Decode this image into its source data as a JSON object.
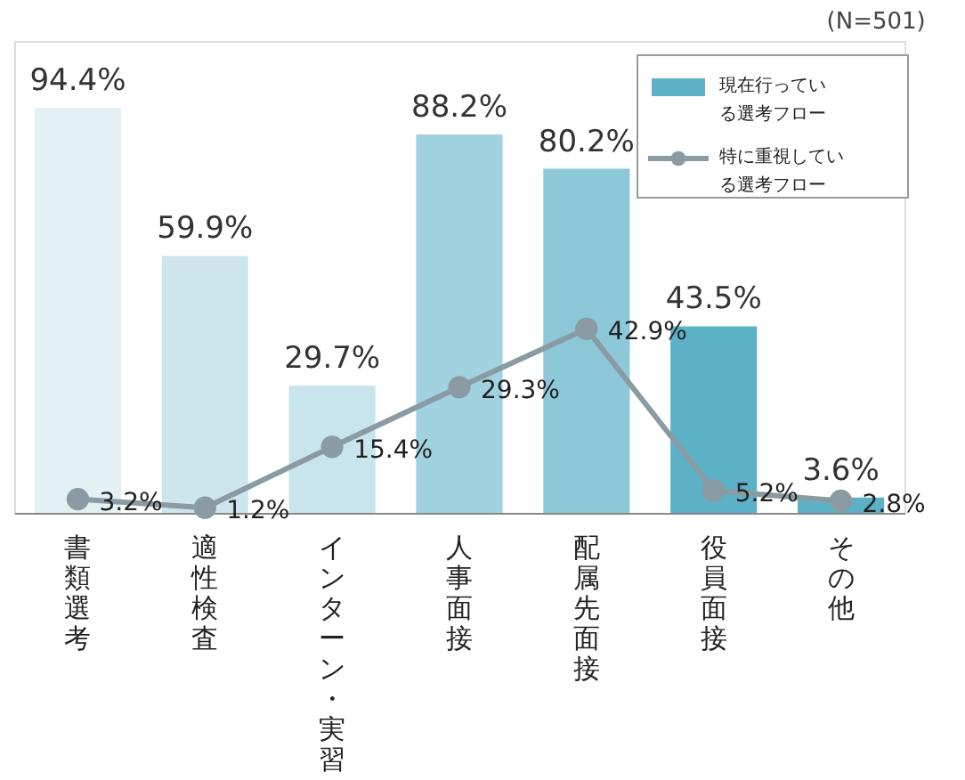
{
  "chart_data": {
    "type": "bar",
    "annotations": [
      "(N=501)"
    ],
    "categories": [
      "書類選考",
      "適性検査",
      "インターン・実習",
      "人事面接",
      "配属先面接",
      "役員面接",
      "その他"
    ],
    "ylim": [
      0,
      110
    ],
    "tick_labels": "x",
    "grid": false,
    "legend": "top right",
    "marker": "circle",
    "line_style": "solid",
    "series": [
      {
        "name": "現在行っている選考フロー",
        "color": "#5db1c7",
        "colors": [
          "#e3f1f5",
          "#cde6ee",
          "#c8e4ec",
          "#a0d2df",
          "#8cc8d8",
          "#5db1c7",
          "#5db1c7"
        ],
        "values": [
          94.4,
          59.9,
          29.7,
          88.2,
          80.2,
          43.5,
          3.6
        ],
        "value_labels": [
          "94.4%",
          "59.9%",
          "29.7%",
          "88.2%",
          "80.2%",
          "43.5%",
          "3.6%"
        ]
      },
      {
        "name": "特に重視している選考フロー",
        "type": "line",
        "color": "#8a9ba3",
        "values": [
          3.2,
          1.2,
          15.4,
          29.3,
          42.9,
          5.2,
          2.8
        ],
        "value_labels": [
          "3.2%",
          "1.2%",
          "15.4%",
          "29.3%",
          "42.9%",
          "5.2%",
          "2.8%"
        ]
      }
    ]
  }
}
